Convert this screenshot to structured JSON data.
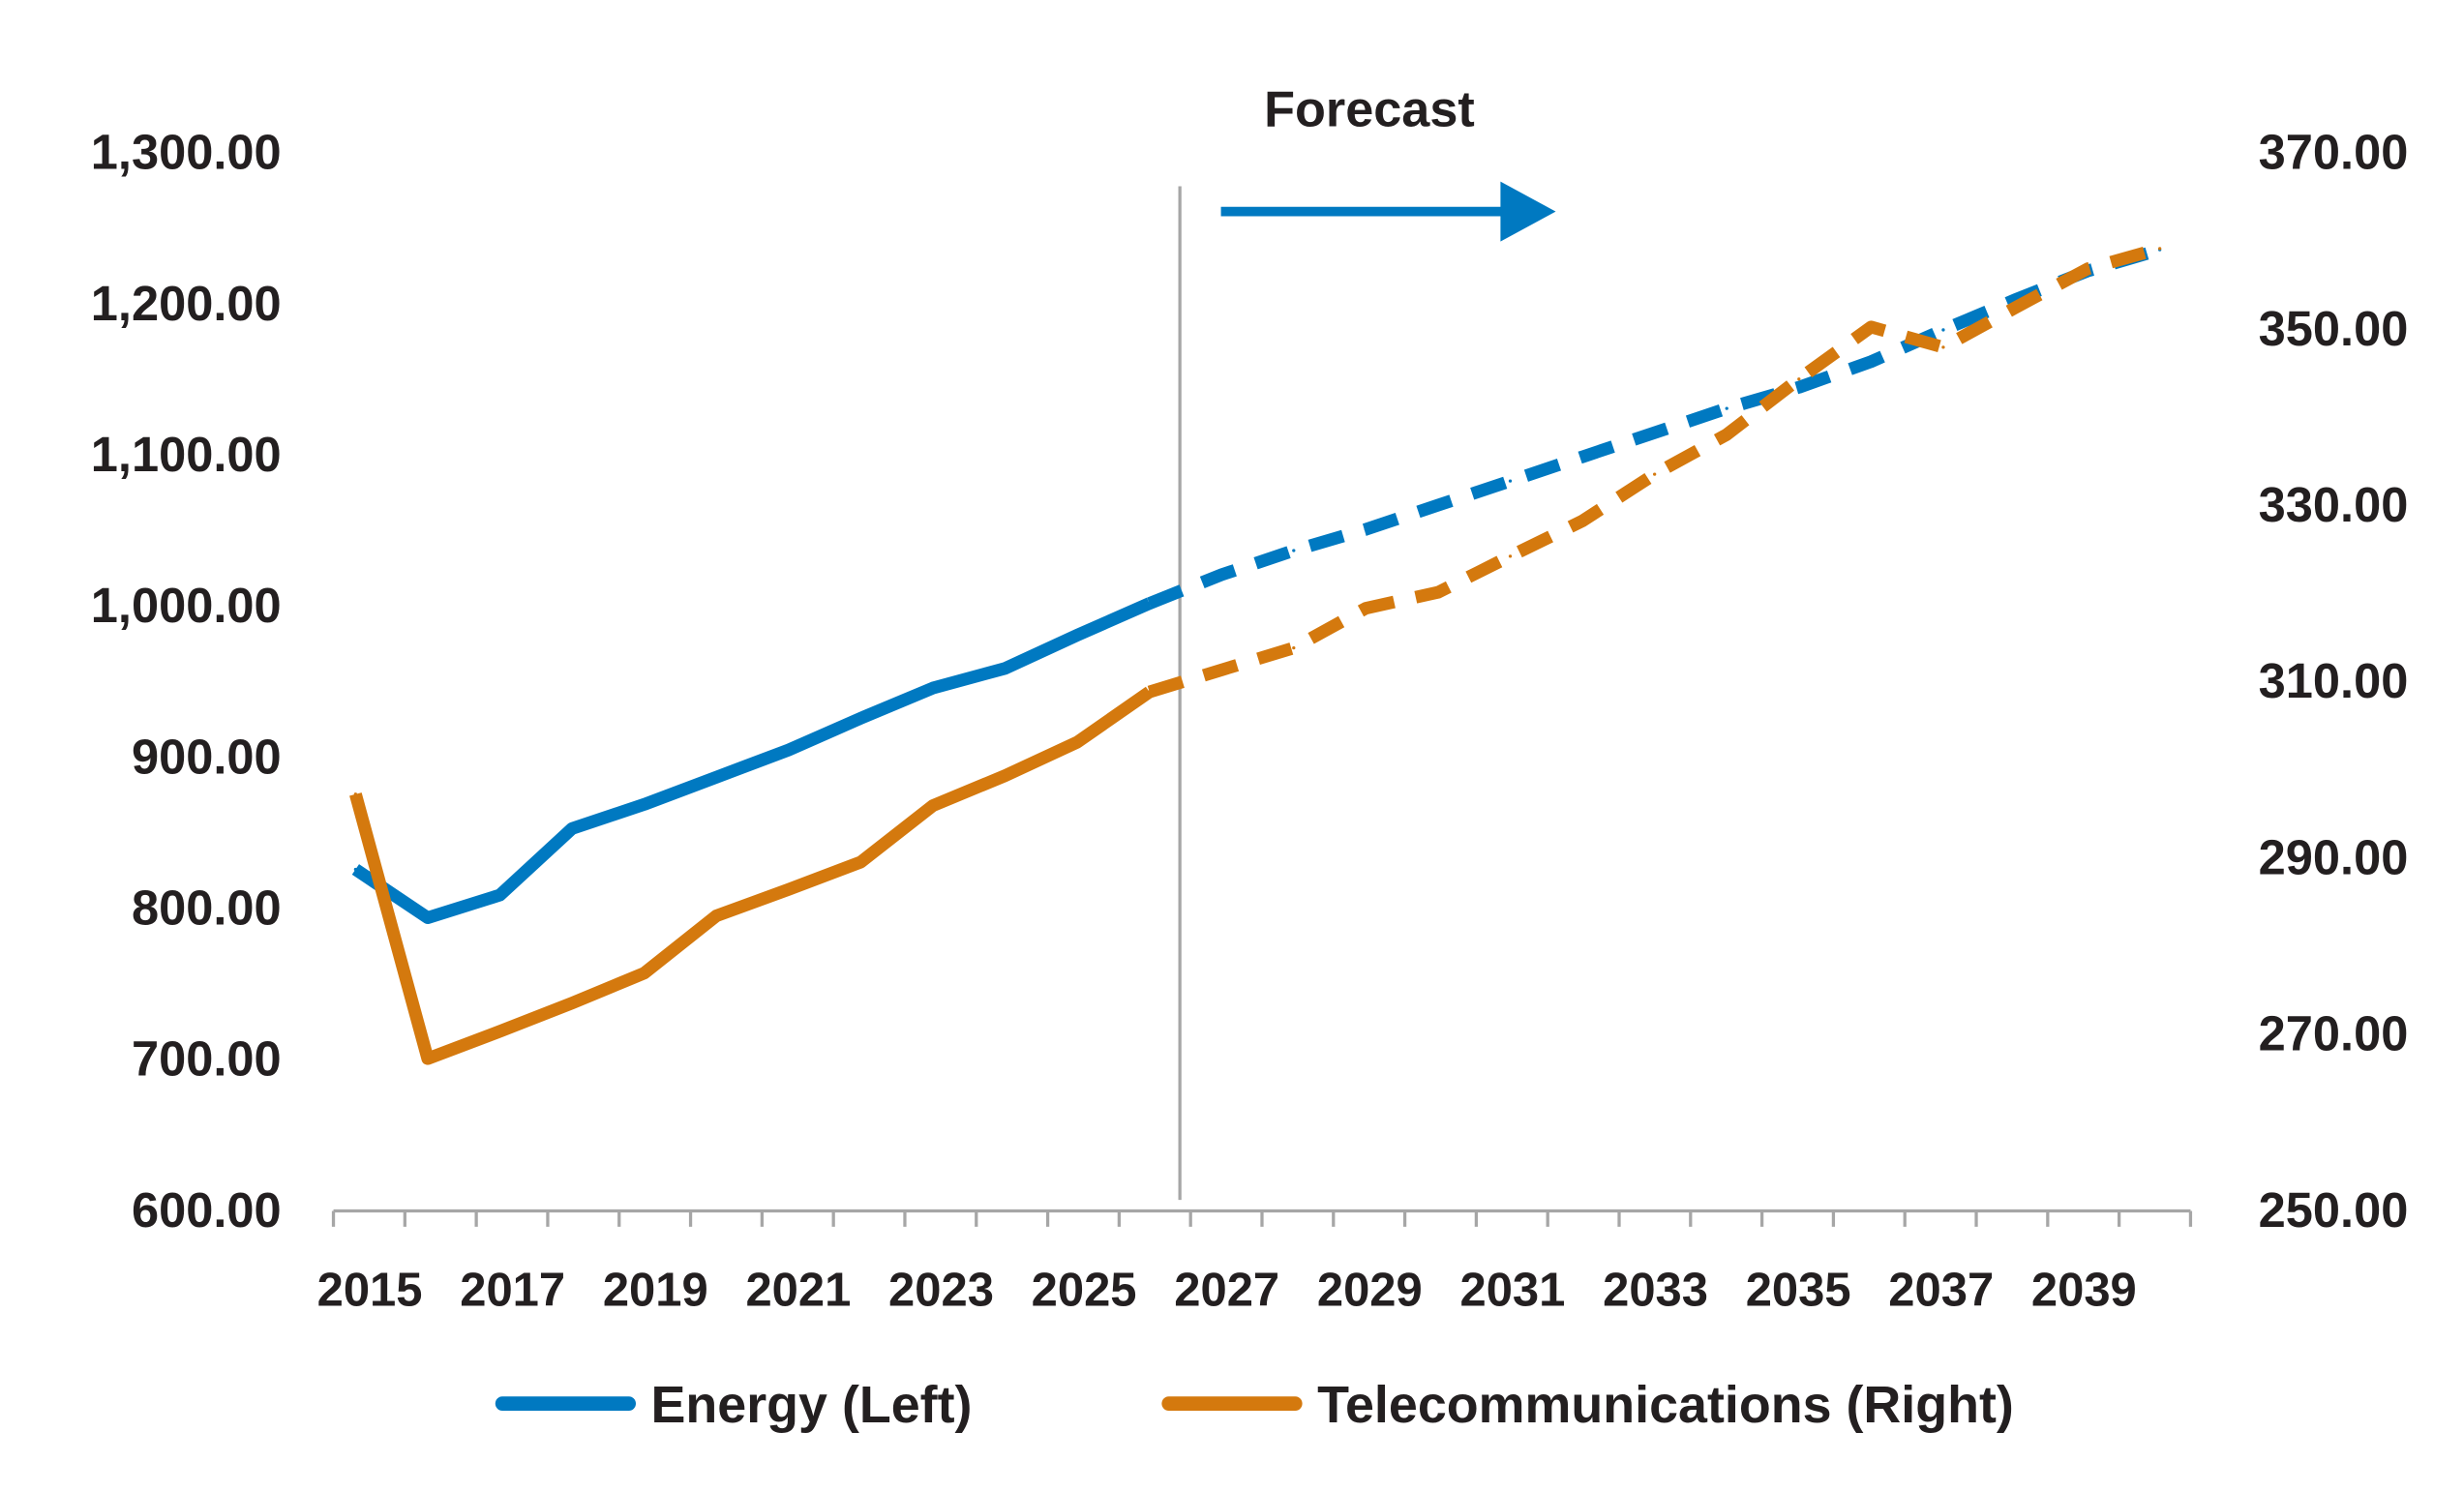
{
  "chart_data": {
    "type": "line",
    "title": "",
    "annotation": "Forecast",
    "forecast_start": 2026,
    "x": [
      2015,
      2016,
      2017,
      2018,
      2019,
      2020,
      2021,
      2022,
      2023,
      2024,
      2025,
      2026,
      2027,
      2028,
      2029,
      2030,
      2031,
      2032,
      2033,
      2034,
      2035,
      2036,
      2037,
      2038,
      2039,
      2040
    ],
    "x_tick_labels": [
      "2015",
      "2017",
      "2019",
      "2021",
      "2023",
      "2025",
      "2027",
      "2029",
      "2031",
      "2033",
      "2035",
      "2037",
      "2039"
    ],
    "y_left": {
      "range": [
        600,
        1300
      ],
      "tick_labels": [
        "1,300.00",
        "1,200.00",
        "1,100.00",
        "1,000.00",
        "900.00",
        "800.00",
        "700.00",
        "600.00"
      ]
    },
    "y_right": {
      "range": [
        250,
        370
      ],
      "tick_labels": [
        "370.00",
        "350.00",
        "330.00",
        "310.00",
        "290.00",
        "270.00",
        "250.00"
      ]
    },
    "grid": false,
    "legend_position": "bottom",
    "series": [
      {
        "name": "Energy (Left)",
        "axis": "left",
        "color": "#0079c1",
        "values": [
          825,
          793,
          808,
          852,
          868,
          886,
          904,
          925,
          945,
          958,
          980,
          1001,
          1020,
          1036,
          1050,
          1066,
          1082,
          1098,
          1114,
          1130,
          1144,
          1161,
          1182,
          1202,
          1221,
          1235
        ]
      },
      {
        "name": "Telecommunications (Right)",
        "axis": "right",
        "color": "#d4790e",
        "values": [
          297.1,
          267.1,
          270.2,
          273.4,
          276.8,
          283.3,
          286.3,
          289.4,
          295.8,
          299.2,
          303.0,
          308.7,
          311.2,
          313.7,
          318.2,
          320.0,
          324.1,
          328.1,
          333.4,
          337.9,
          344.2,
          350.1,
          347.8,
          352.3,
          356.7,
          359.0
        ]
      }
    ]
  }
}
